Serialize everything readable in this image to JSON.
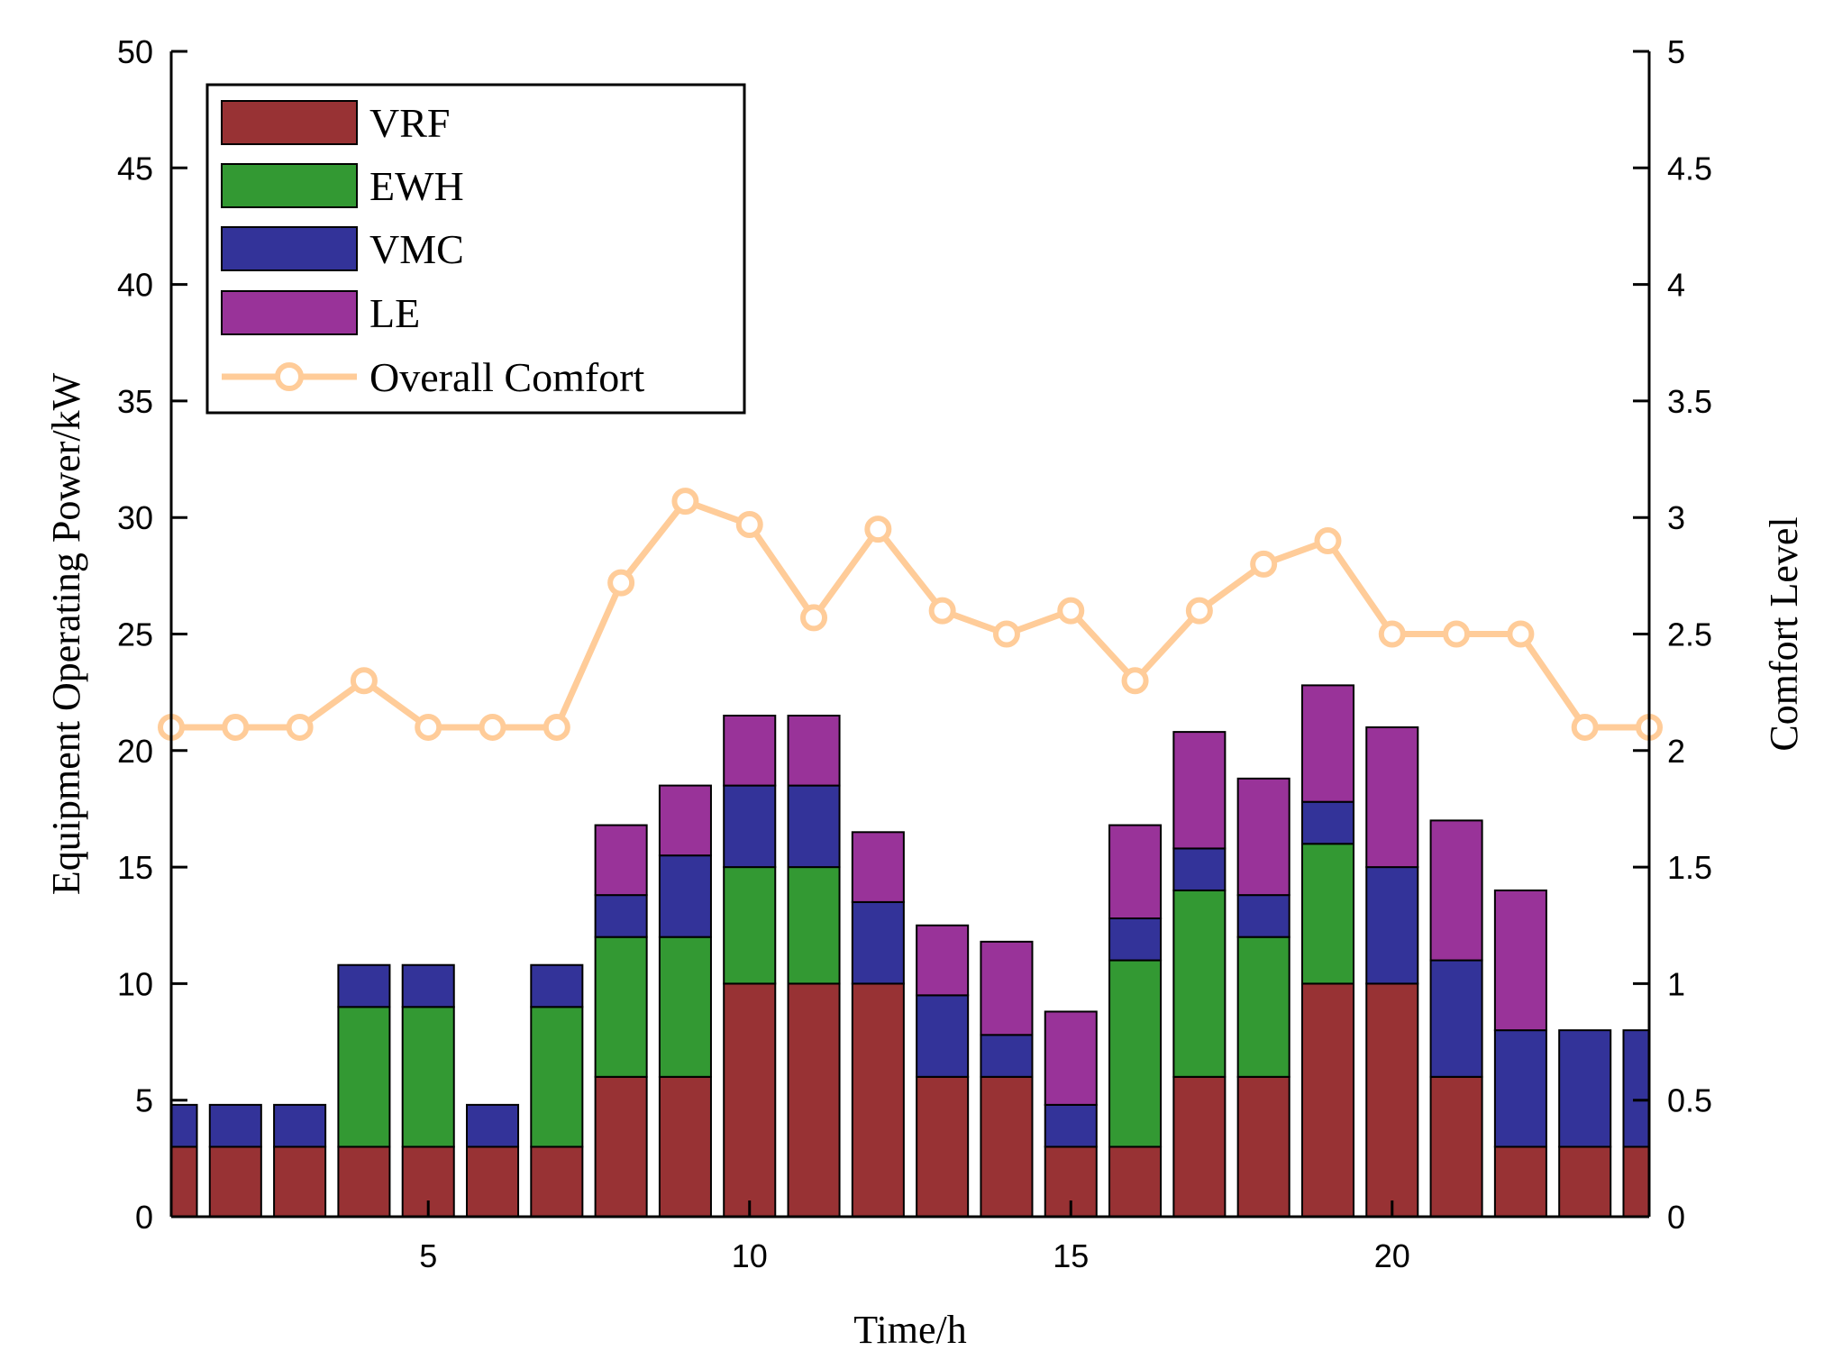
{
  "chart_data": {
    "type": "bar",
    "stacked": true,
    "xlabel": "Time/h",
    "ylabel": "Equipment Operating Power/kW",
    "y2label": "Comfort Level",
    "xlim": [
      1,
      24
    ],
    "ylim": [
      0,
      50
    ],
    "y2lim": [
      0,
      5
    ],
    "xticks": [
      5,
      10,
      15,
      20
    ],
    "yticks": [
      0,
      5,
      10,
      15,
      20,
      25,
      30,
      35,
      40,
      45,
      50
    ],
    "y2ticks": [
      0,
      0.5,
      1,
      1.5,
      2,
      2.5,
      3,
      3.5,
      4,
      4.5,
      5
    ],
    "legend_position": "top-left",
    "categories": [
      1,
      2,
      3,
      4,
      5,
      6,
      7,
      8,
      9,
      10,
      11,
      12,
      13,
      14,
      15,
      16,
      17,
      18,
      19,
      20,
      21,
      22,
      23,
      24
    ],
    "series": [
      {
        "name": "VRF",
        "color": "#983234",
        "values": [
          3,
          3,
          3,
          3,
          3,
          3,
          3,
          6,
          6,
          10,
          10,
          10,
          6,
          6,
          3,
          3,
          6,
          6,
          10,
          10,
          6,
          3,
          3,
          3
        ]
      },
      {
        "name": "EWH",
        "color": "#339933",
        "values": [
          0,
          0,
          0,
          6,
          6,
          0,
          6,
          6,
          6,
          5,
          5,
          0,
          0,
          0,
          0,
          8,
          8,
          6,
          6,
          0,
          0,
          0,
          0,
          0
        ]
      },
      {
        "name": "VMC",
        "color": "#333399",
        "values": [
          1.8,
          1.8,
          1.8,
          1.8,
          1.8,
          1.8,
          1.8,
          1.8,
          3.5,
          3.5,
          3.5,
          3.5,
          3.5,
          1.8,
          1.8,
          1.8,
          1.8,
          1.8,
          1.8,
          5,
          5,
          5,
          5,
          5
        ]
      },
      {
        "name": "LE",
        "color": "#993399",
        "values": [
          0,
          0,
          0,
          0,
          0,
          0,
          0,
          3,
          3,
          3,
          3,
          3,
          3,
          4,
          4,
          4,
          5,
          5,
          5,
          6,
          6,
          6,
          0,
          0
        ]
      }
    ],
    "line_series": {
      "name": "Overall Comfort",
      "color": "#FFCC99",
      "axis": "right",
      "values": [
        2.1,
        2.1,
        2.1,
        2.3,
        2.1,
        2.1,
        2.1,
        2.72,
        3.07,
        2.97,
        2.57,
        2.95,
        2.6,
        2.5,
        2.6,
        2.3,
        2.6,
        2.8,
        2.9,
        2.5,
        2.5,
        2.5,
        2.1,
        2.1
      ]
    }
  }
}
